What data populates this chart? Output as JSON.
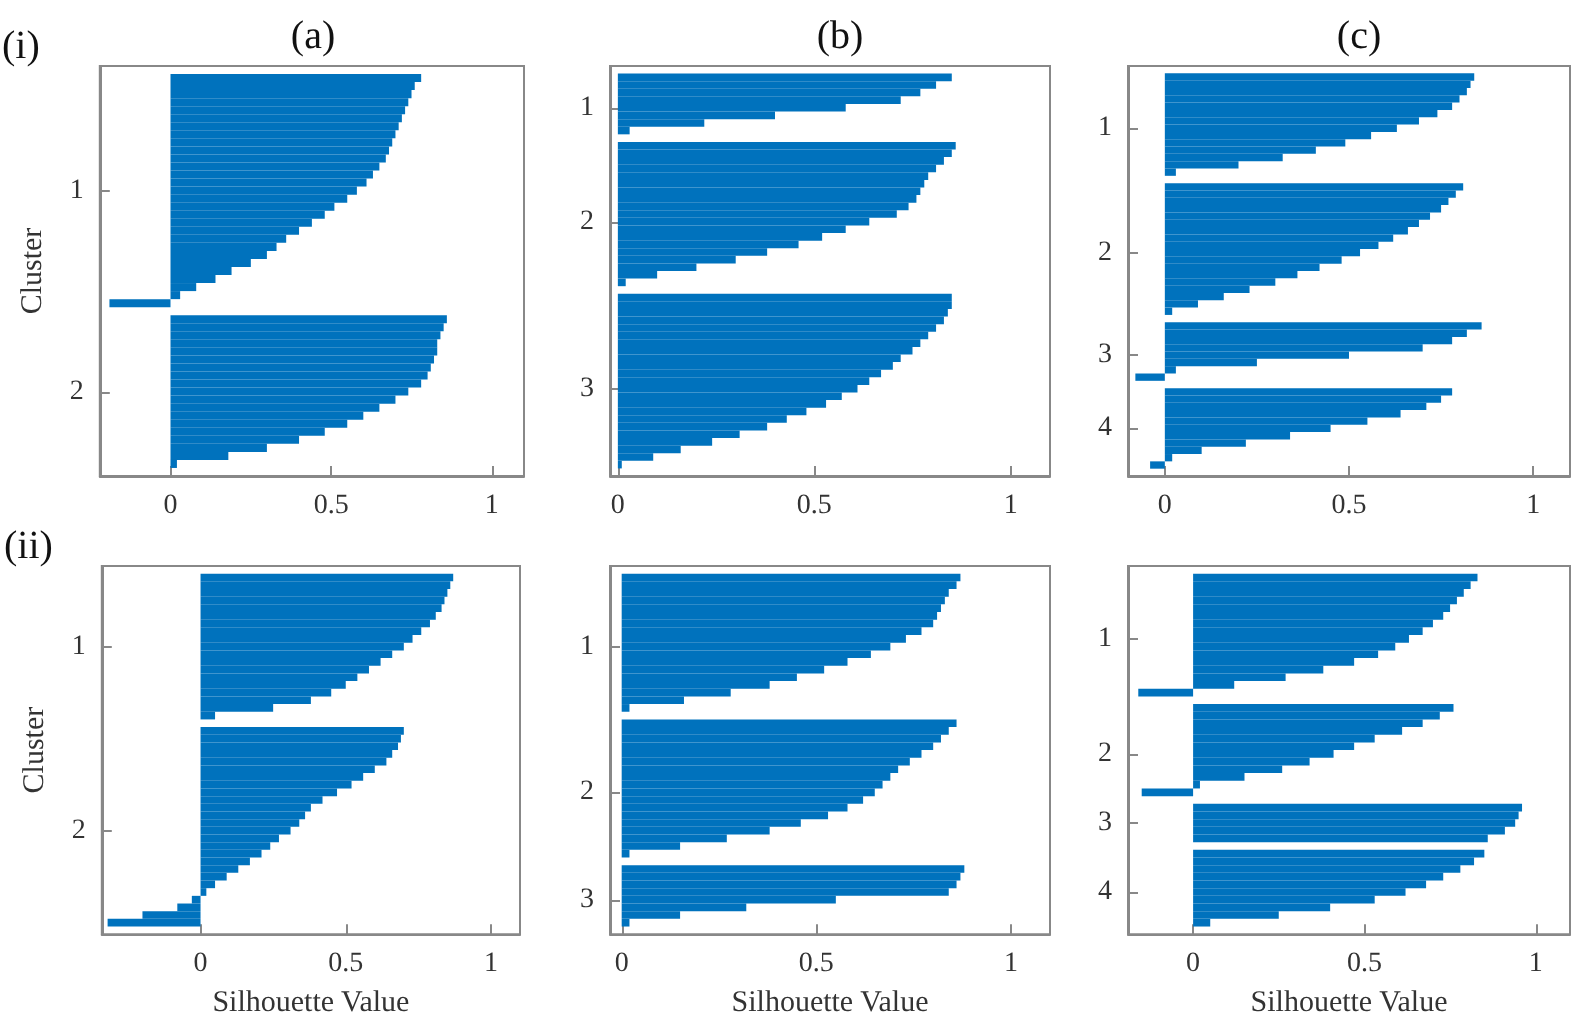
{
  "chart_data": [
    {
      "type": "bar",
      "orientation": "horizontal",
      "title": "(a)",
      "ylabel": "Cluster",
      "annotations": [
        "(i)"
      ],
      "color": "#0072bd",
      "xlim": [
        -0.22,
        1.1
      ],
      "xticks": [
        0,
        0.5,
        1
      ],
      "categories": [
        null,
        null,
        null,
        null,
        null,
        null,
        null,
        null,
        null,
        null,
        null,
        null,
        null,
        null,
        null,
        "1",
        null,
        null,
        null,
        null,
        null,
        null,
        null,
        null,
        null,
        null,
        null,
        null,
        null,
        null,
        null,
        null,
        null,
        null,
        null,
        null,
        null,
        null,
        null,
        null,
        "2",
        null,
        null,
        null,
        null,
        null,
        null,
        null,
        null,
        null,
        null
      ],
      "values": [
        null,
        0.78,
        0.76,
        0.75,
        0.74,
        0.73,
        0.72,
        0.71,
        0.7,
        0.69,
        0.68,
        0.67,
        0.65,
        0.63,
        0.61,
        0.58,
        0.55,
        0.51,
        0.48,
        0.44,
        0.4,
        0.36,
        0.33,
        0.3,
        0.25,
        0.19,
        0.14,
        0.08,
        0.03,
        -0.19,
        null,
        0.86,
        0.85,
        0.84,
        0.83,
        0.83,
        0.82,
        0.81,
        0.8,
        0.78,
        0.74,
        0.7,
        0.65,
        0.6,
        0.55,
        0.48,
        0.4,
        0.3,
        0.18,
        0.02,
        null
      ]
    },
    {
      "type": "bar",
      "orientation": "horizontal",
      "title": "(b)",
      "color": "#0072bd",
      "xlim": [
        -0.02,
        1.1
      ],
      "xticks": [
        0,
        0.5,
        1
      ],
      "categories": [
        null,
        null,
        null,
        null,
        null,
        "1",
        null,
        null,
        null,
        null,
        null,
        null,
        null,
        null,
        null,
        null,
        null,
        null,
        null,
        null,
        "2",
        null,
        null,
        null,
        null,
        null,
        null,
        null,
        null,
        null,
        null,
        null,
        null,
        null,
        null,
        null,
        null,
        null,
        null,
        null,
        null,
        null,
        "3",
        null,
        null,
        null,
        null,
        null,
        null,
        null,
        null,
        null,
        null,
        null
      ],
      "values": [
        null,
        0.85,
        0.81,
        0.77,
        0.72,
        0.58,
        0.4,
        0.22,
        0.03,
        null,
        0.86,
        0.85,
        0.83,
        0.81,
        0.79,
        0.78,
        0.77,
        0.76,
        0.74,
        0.71,
        0.64,
        0.58,
        0.52,
        0.46,
        0.38,
        0.3,
        0.2,
        0.1,
        0.02,
        null,
        0.85,
        0.85,
        0.84,
        0.83,
        0.81,
        0.79,
        0.77,
        0.75,
        0.72,
        0.7,
        0.67,
        0.64,
        0.61,
        0.57,
        0.53,
        0.48,
        0.43,
        0.38,
        0.31,
        0.24,
        0.16,
        0.09,
        0.01,
        null
      ]
    },
    {
      "type": "bar",
      "orientation": "horizontal",
      "title": "(c)",
      "color": "#0072bd",
      "xlim": [
        -0.1,
        1.1
      ],
      "xticks": [
        0,
        0.5,
        1
      ],
      "categories": [
        null,
        null,
        null,
        null,
        null,
        null,
        null,
        null,
        "1",
        null,
        null,
        null,
        null,
        null,
        null,
        null,
        null,
        null,
        null,
        null,
        null,
        null,
        null,
        null,
        null,
        "2",
        null,
        null,
        null,
        null,
        null,
        null,
        null,
        null,
        null,
        null,
        null,
        null,
        null,
        "3",
        null,
        null,
        null,
        null,
        null,
        null,
        null,
        null,
        null,
        "4",
        null,
        null,
        null,
        null,
        null,
        null
      ],
      "values": [
        null,
        0.84,
        0.83,
        0.82,
        0.8,
        0.78,
        0.74,
        0.69,
        0.63,
        0.56,
        0.49,
        0.41,
        0.32,
        0.2,
        0.03,
        null,
        0.81,
        0.79,
        0.77,
        0.75,
        0.72,
        0.69,
        0.66,
        0.62,
        0.58,
        0.53,
        0.48,
        0.42,
        0.36,
        0.3,
        0.23,
        0.16,
        0.09,
        0.02,
        null,
        0.86,
        0.82,
        0.78,
        0.7,
        0.5,
        0.25,
        0.03,
        -0.08,
        null,
        0.78,
        0.75,
        0.71,
        0.64,
        0.55,
        0.45,
        0.34,
        0.22,
        0.1,
        0.02,
        -0.04,
        null
      ]
    },
    {
      "type": "bar",
      "orientation": "horizontal",
      "xlabel": "Silhouette Value",
      "ylabel": "Cluster",
      "annotations": [
        "(ii)"
      ],
      "color": "#0072bd",
      "xlim": [
        -0.34,
        1.1
      ],
      "xticks": [
        0,
        0.5,
        1
      ],
      "categories": [
        null,
        null,
        null,
        null,
        null,
        null,
        null,
        null,
        null,
        null,
        "1",
        null,
        null,
        null,
        null,
        null,
        null,
        null,
        null,
        null,
        null,
        null,
        null,
        null,
        null,
        null,
        null,
        null,
        null,
        null,
        null,
        null,
        null,
        null,
        "2",
        null,
        null,
        null,
        null,
        null,
        null,
        null,
        null,
        null,
        null,
        null,
        null,
        null
      ],
      "values": [
        null,
        0.87,
        0.86,
        0.85,
        0.84,
        0.83,
        0.81,
        0.79,
        0.76,
        0.73,
        0.7,
        0.66,
        0.62,
        0.58,
        0.54,
        0.5,
        0.45,
        0.38,
        0.25,
        0.05,
        null,
        0.7,
        0.69,
        0.68,
        0.66,
        0.64,
        0.6,
        0.56,
        0.52,
        0.47,
        0.42,
        0.38,
        0.36,
        0.34,
        0.31,
        0.27,
        0.24,
        0.21,
        0.17,
        0.13,
        0.09,
        0.05,
        0.02,
        -0.03,
        -0.08,
        -0.2,
        -0.32,
        null
      ]
    },
    {
      "type": "bar",
      "orientation": "horizontal",
      "xlabel": "Silhouette Value",
      "color": "#0072bd",
      "xlim": [
        -0.03,
        1.1
      ],
      "xticks": [
        0,
        0.5,
        1
      ],
      "categories": [
        null,
        null,
        null,
        null,
        null,
        null,
        null,
        null,
        null,
        null,
        "1",
        null,
        null,
        null,
        null,
        null,
        null,
        null,
        null,
        null,
        null,
        null,
        null,
        null,
        null,
        null,
        null,
        null,
        null,
        "2",
        null,
        null,
        null,
        null,
        null,
        null,
        null,
        null,
        null,
        null,
        null,
        null,
        null,
        "3",
        null,
        null,
        null,
        null
      ],
      "values": [
        null,
        0.87,
        0.86,
        0.84,
        0.83,
        0.82,
        0.81,
        0.8,
        0.77,
        0.73,
        0.69,
        0.64,
        0.58,
        0.52,
        0.45,
        0.38,
        0.28,
        0.16,
        0.02,
        null,
        0.86,
        0.84,
        0.82,
        0.8,
        0.77,
        0.74,
        0.71,
        0.69,
        0.67,
        0.65,
        0.62,
        0.58,
        0.53,
        0.46,
        0.38,
        0.27,
        0.15,
        0.02,
        null,
        0.88,
        0.87,
        0.86,
        0.84,
        0.55,
        0.32,
        0.15,
        0.02,
        null
      ]
    },
    {
      "type": "bar",
      "orientation": "horizontal",
      "xlabel": "Silhouette Value",
      "color": "#0072bd",
      "xlim": [
        -0.19,
        1.1
      ],
      "xticks": [
        0,
        0.5,
        1
      ],
      "categories": [
        null,
        null,
        null,
        null,
        null,
        null,
        null,
        null,
        null,
        "1",
        null,
        null,
        null,
        null,
        null,
        null,
        null,
        null,
        null,
        null,
        null,
        null,
        null,
        null,
        "2",
        null,
        null,
        null,
        null,
        null,
        null,
        null,
        null,
        "3",
        null,
        null,
        null,
        null,
        null,
        null,
        null,
        null,
        "4",
        null,
        null,
        null,
        null,
        null
      ],
      "values": [
        null,
        0.83,
        0.81,
        0.79,
        0.77,
        0.75,
        0.73,
        0.7,
        0.67,
        0.63,
        0.59,
        0.54,
        0.47,
        0.38,
        0.27,
        0.12,
        -0.16,
        null,
        0.76,
        0.72,
        0.67,
        0.61,
        0.53,
        0.47,
        0.41,
        0.34,
        0.26,
        0.15,
        0.02,
        -0.15,
        null,
        0.96,
        0.95,
        0.94,
        0.91,
        0.86,
        null,
        0.85,
        0.82,
        0.78,
        0.73,
        0.68,
        0.62,
        0.53,
        0.4,
        0.25,
        0.05,
        null
      ]
    }
  ]
}
